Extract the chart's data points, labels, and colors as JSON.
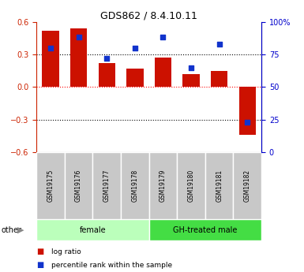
{
  "title": "GDS862 / 8.4.10.11",
  "categories": [
    "GSM19175",
    "GSM19176",
    "GSM19177",
    "GSM19178",
    "GSM19179",
    "GSM19180",
    "GSM19181",
    "GSM19182"
  ],
  "log_ratio": [
    0.52,
    0.54,
    0.22,
    0.17,
    0.27,
    0.12,
    0.15,
    -0.44
  ],
  "percentile_rank": [
    80,
    88,
    72,
    80,
    88,
    65,
    83,
    23
  ],
  "bar_color": "#cc1100",
  "dot_color": "#1133cc",
  "ylim_left": [
    -0.6,
    0.6
  ],
  "ylim_right": [
    0,
    100
  ],
  "yticks_left": [
    -0.6,
    -0.3,
    0,
    0.3,
    0.6
  ],
  "yticks_right": [
    0,
    25,
    50,
    75,
    100
  ],
  "ytick_right_labels": [
    "0",
    "25",
    "50",
    "75",
    "100%"
  ],
  "groups": [
    {
      "label": "female",
      "start": 0,
      "end": 3,
      "color": "#bbffbb"
    },
    {
      "label": "GH-treated male",
      "start": 4,
      "end": 7,
      "color": "#44dd44"
    }
  ],
  "other_label": "other",
  "legend_items": [
    {
      "label": "log ratio",
      "color": "#cc1100"
    },
    {
      "label": "percentile rank within the sample",
      "color": "#1133cc"
    }
  ],
  "bar_width": 0.6,
  "tick_label_color_left": "#cc2200",
  "tick_label_color_right": "#0000cc"
}
